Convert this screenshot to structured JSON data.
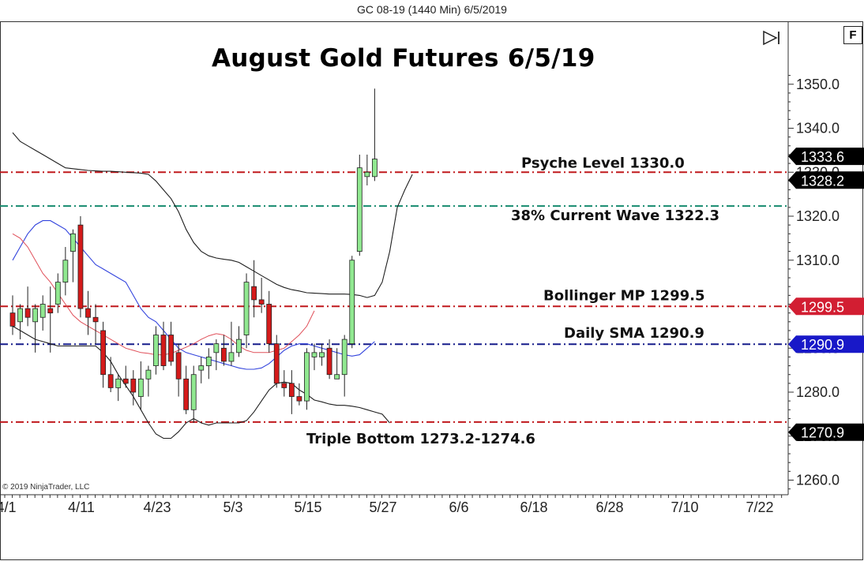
{
  "window_title": "GC 08-19 (1440 Min)  6/5/2019",
  "f_button": "F",
  "copyright": "© 2019 NinjaTrader, LLC",
  "colors": {
    "up_candle": "#90e890",
    "down_candle": "#d41a1a",
    "bollinger_band": "#1f1f1f",
    "sma_blue": "#3344dd",
    "sma_red": "#e0505a",
    "level_red": "#c0181c",
    "level_teal": "#158a6e",
    "level_navy": "#151b8a"
  },
  "chart_data": {
    "type": "candlestick",
    "title": "August Gold Futures 6/5/19",
    "y_ticks": [
      1260.0,
      1270.0,
      1280.0,
      1290.0,
      1300.0,
      1310.0,
      1320.0,
      1330.0,
      1340.0,
      1350.0
    ],
    "x_ticks": [
      "4/1",
      "4/11",
      "4/23",
      "5/3",
      "5/15",
      "5/27",
      "6/6",
      "6/18",
      "6/28",
      "7/10",
      "7/22"
    ],
    "ylim": [
      1258.0,
      1353.0
    ],
    "candles": [
      {
        "date": "4/2",
        "open": 1298,
        "high": 1302,
        "low": 1293,
        "close": 1295
      },
      {
        "date": "4/3",
        "open": 1296,
        "high": 1300,
        "low": 1292,
        "close": 1299
      },
      {
        "date": "4/4",
        "open": 1299,
        "high": 1304,
        "low": 1295,
        "close": 1297
      },
      {
        "date": "4/5",
        "open": 1296,
        "high": 1300,
        "low": 1289,
        "close": 1299
      },
      {
        "date": "4/8",
        "open": 1297,
        "high": 1302,
        "low": 1294,
        "close": 1300
      },
      {
        "date": "4/9",
        "open": 1299,
        "high": 1304,
        "low": 1289,
        "close": 1298
      },
      {
        "date": "4/10",
        "open": 1300,
        "high": 1307,
        "low": 1298,
        "close": 1305
      },
      {
        "date": "4/11",
        "open": 1305,
        "high": 1313,
        "low": 1302,
        "close": 1310
      },
      {
        "date": "4/12",
        "open": 1312,
        "high": 1317,
        "low": 1305,
        "close": 1316
      },
      {
        "date": "4/15",
        "open": 1318,
        "high": 1320,
        "low": 1297,
        "close": 1299
      },
      {
        "date": "4/16",
        "open": 1299,
        "high": 1303,
        "low": 1293,
        "close": 1297
      },
      {
        "date": "4/17",
        "open": 1297,
        "high": 1300,
        "low": 1291,
        "close": 1296
      },
      {
        "date": "4/18",
        "open": 1294,
        "high": 1296,
        "low": 1281,
        "close": 1284
      },
      {
        "date": "4/19",
        "open": 1284,
        "high": 1288,
        "low": 1280,
        "close": 1281
      },
      {
        "date": "4/22",
        "open": 1281,
        "high": 1284,
        "low": 1278,
        "close": 1283
      },
      {
        "date": "4/23",
        "open": 1283,
        "high": 1286,
        "low": 1281,
        "close": 1282
      },
      {
        "date": "4/24",
        "open": 1283,
        "high": 1285,
        "low": 1277,
        "close": 1280
      },
      {
        "date": "4/25",
        "open": 1279,
        "high": 1287,
        "low": 1276,
        "close": 1283
      },
      {
        "date": "4/26",
        "open": 1283,
        "high": 1286,
        "low": 1279,
        "close": 1285
      },
      {
        "date": "4/29",
        "open": 1286,
        "high": 1295,
        "low": 1284,
        "close": 1293
      },
      {
        "date": "4/30",
        "open": 1293,
        "high": 1296,
        "low": 1285,
        "close": 1286
      },
      {
        "date": "5/1",
        "open": 1293,
        "high": 1296,
        "low": 1286,
        "close": 1287
      },
      {
        "date": "5/2",
        "open": 1289,
        "high": 1291,
        "low": 1279,
        "close": 1283
      },
      {
        "date": "5/3",
        "open": 1283,
        "high": 1286,
        "low": 1275,
        "close": 1276
      },
      {
        "date": "5/6",
        "open": 1276,
        "high": 1286,
        "low": 1273,
        "close": 1284
      },
      {
        "date": "5/7",
        "open": 1285,
        "high": 1288,
        "low": 1282,
        "close": 1286
      },
      {
        "date": "5/8",
        "open": 1286,
        "high": 1290,
        "low": 1283,
        "close": 1288
      },
      {
        "date": "5/9",
        "open": 1289,
        "high": 1292,
        "low": 1285,
        "close": 1291
      },
      {
        "date": "5/10",
        "open": 1290,
        "high": 1293,
        "low": 1286,
        "close": 1287
      },
      {
        "date": "5/13",
        "open": 1287,
        "high": 1296,
        "low": 1286,
        "close": 1289
      },
      {
        "date": "5/14",
        "open": 1289,
        "high": 1295,
        "low": 1288,
        "close": 1292
      },
      {
        "date": "5/15",
        "open": 1293,
        "high": 1307,
        "low": 1290,
        "close": 1305
      },
      {
        "date": "5/16",
        "open": 1304,
        "high": 1310,
        "low": 1297,
        "close": 1301
      },
      {
        "date": "5/17",
        "open": 1301,
        "high": 1306,
        "low": 1298,
        "close": 1300
      },
      {
        "date": "5/20",
        "open": 1300,
        "high": 1303,
        "low": 1289,
        "close": 1291
      },
      {
        "date": "5/21",
        "open": 1291,
        "high": 1293,
        "low": 1281,
        "close": 1282
      },
      {
        "date": "5/22",
        "open": 1282,
        "high": 1285,
        "low": 1279,
        "close": 1281
      },
      {
        "date": "5/23",
        "open": 1282,
        "high": 1285,
        "low": 1275,
        "close": 1279
      },
      {
        "date": "5/24",
        "open": 1279,
        "high": 1282,
        "low": 1277,
        "close": 1278
      },
      {
        "date": "5/28",
        "open": 1278,
        "high": 1290,
        "low": 1276,
        "close": 1289
      },
      {
        "date": "5/29",
        "open": 1288,
        "high": 1291,
        "low": 1285,
        "close": 1289
      },
      {
        "date": "5/30",
        "open": 1288,
        "high": 1291,
        "low": 1286,
        "close": 1289
      },
      {
        "date": "5/31",
        "open": 1290,
        "high": 1292,
        "low": 1283,
        "close": 1284
      },
      {
        "date": "6/3",
        "open": 1283,
        "high": 1290,
        "low": 1283,
        "close": 1284
      },
      {
        "date": "6/4",
        "open": 1284,
        "high": 1293,
        "low": 1279,
        "close": 1292
      },
      {
        "date": "6/5",
        "open": 1291,
        "high": 1311,
        "low": 1290,
        "close": 1310
      },
      {
        "date": "6/6",
        "open": 1312,
        "high": 1334,
        "low": 1311,
        "close": 1331
      },
      {
        "date": "6/7",
        "open": 1329,
        "high": 1334,
        "low": 1327,
        "close": 1330
      },
      {
        "date": "6/10",
        "open": 1329,
        "high": 1349,
        "low": 1328,
        "close": 1333
      }
    ],
    "bollinger_upper": [
      1339,
      1337,
      1336,
      1335,
      1334,
      1333,
      1332,
      1331,
      1330.8,
      1330.6,
      1330.4,
      1330.3,
      1330.2,
      1330.2,
      1330.1,
      1330.0,
      1329.9,
      1329.8,
      1329.5,
      1328,
      1326,
      1324,
      1321,
      1317,
      1314,
      1312,
      1311,
      1310.5,
      1310.2,
      1310,
      1309.5,
      1308.5,
      1307.5,
      1306.5,
      1305.5,
      1304.5,
      1303.8,
      1303.3,
      1303,
      1302.6,
      1302.5,
      1302.4,
      1302.3,
      1302.3,
      1302.3,
      1302.2,
      1302,
      1301.5,
      1302,
      1305,
      1312,
      1322,
      1326,
      1329.5
    ],
    "bollinger_lower": [
      1295,
      1294,
      1293,
      1292,
      1291.5,
      1291,
      1290.5,
      1290.5,
      1290.5,
      1290.5,
      1290.5,
      1290.5,
      1289,
      1287,
      1284,
      1281.5,
      1279,
      1276,
      1273,
      1270.5,
      1269.5,
      1269.5,
      1271,
      1273,
      1274,
      1273,
      1272.5,
      1273,
      1273,
      1273,
      1273,
      1273.5,
      1275.5,
      1278,
      1280.5,
      1282,
      1282.3,
      1282,
      1280.5,
      1279.5,
      1278.2,
      1277.8,
      1277.3,
      1277.0,
      1277.0,
      1276.8,
      1276.5,
      1276.0,
      1275.5,
      1275.0,
      1273.0
    ],
    "sma_blue": [
      1310,
      1313,
      1316,
      1318,
      1319,
      1319,
      1318,
      1317,
      1315,
      1313,
      1311,
      1309,
      1308,
      1307,
      1306,
      1305,
      1302,
      1299,
      1297,
      1296,
      1294,
      1292,
      1290,
      1289,
      1288.5,
      1288,
      1287.5,
      1287,
      1286.5,
      1286,
      1285.5,
      1285.2,
      1285.2,
      1285.5,
      1286.5,
      1288,
      1289.5,
      1290.5,
      1291,
      1291,
      1290.5,
      1290,
      1289.5,
      1289,
      1288.5,
      1288.2,
      1288.5,
      1290,
      1291.5
    ],
    "sma_red": [
      1316,
      1315,
      1313,
      1310,
      1307,
      1305,
      1302.5,
      1300,
      1297.5,
      1296,
      1295,
      1294,
      1293,
      1292,
      1291,
      1290,
      1289.5,
      1289,
      1288.8,
      1288.5,
      1288.5,
      1288.8,
      1289.5,
      1290.2,
      1291.0,
      1292.0,
      1292.8,
      1293.3,
      1293.0,
      1292.0,
      1290.5,
      1289.5,
      1289.0,
      1289.0,
      1289.0,
      1289.5,
      1290.0,
      1291.5,
      1293.0,
      1295.0,
      1298.5
    ],
    "levels": [
      {
        "label": "Psyche Level 1330.0",
        "value": 1330.0,
        "color": "#c0181c"
      },
      {
        "label": "38% Current Wave 1322.3",
        "value": 1322.3,
        "color": "#158a6e"
      },
      {
        "label": "Bollinger MP 1299.5",
        "value": 1299.5,
        "color": "#c0181c"
      },
      {
        "label": "Daily SMA 1290.9",
        "value": 1290.9,
        "color": "#151b8a"
      },
      {
        "label": "Triple Bottom 1273.2-1274.6",
        "value": 1273.2,
        "color": "#c0181c"
      }
    ],
    "price_tags": [
      {
        "text": "1333.6",
        "value": 1333.6,
        "bg": "#000000"
      },
      {
        "text": "1328.2",
        "value": 1328.2,
        "bg": "#000000"
      },
      {
        "text": "1299.5",
        "value": 1299.5,
        "bg": "#d21e32"
      },
      {
        "text": "1290.9",
        "value": 1290.9,
        "bg": "#1818c8"
      },
      {
        "text": "1270.9",
        "value": 1270.9,
        "bg": "#000000"
      }
    ]
  }
}
